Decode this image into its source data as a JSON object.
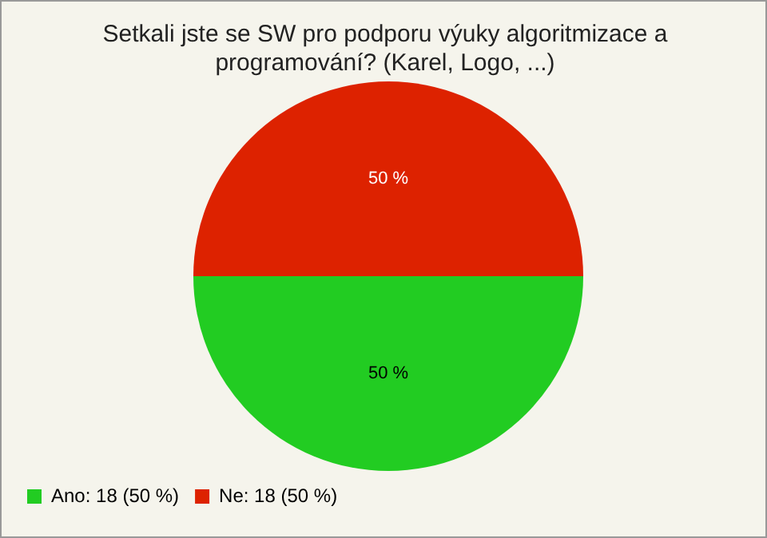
{
  "chart_data": {
    "type": "pie",
    "title": "Setkali jste se SW pro podporu výuky algoritmizace a programování? (Karel, Logo, ...)",
    "categories": [
      "Ano: 18 (50 %)",
      "Ne: 18 (50 %)"
    ],
    "values": [
      50,
      50
    ],
    "colors": [
      "#22cc22",
      "#dd2200"
    ],
    "value_labels": [
      "50 %",
      "50 %"
    ],
    "legend": "bottom left"
  }
}
